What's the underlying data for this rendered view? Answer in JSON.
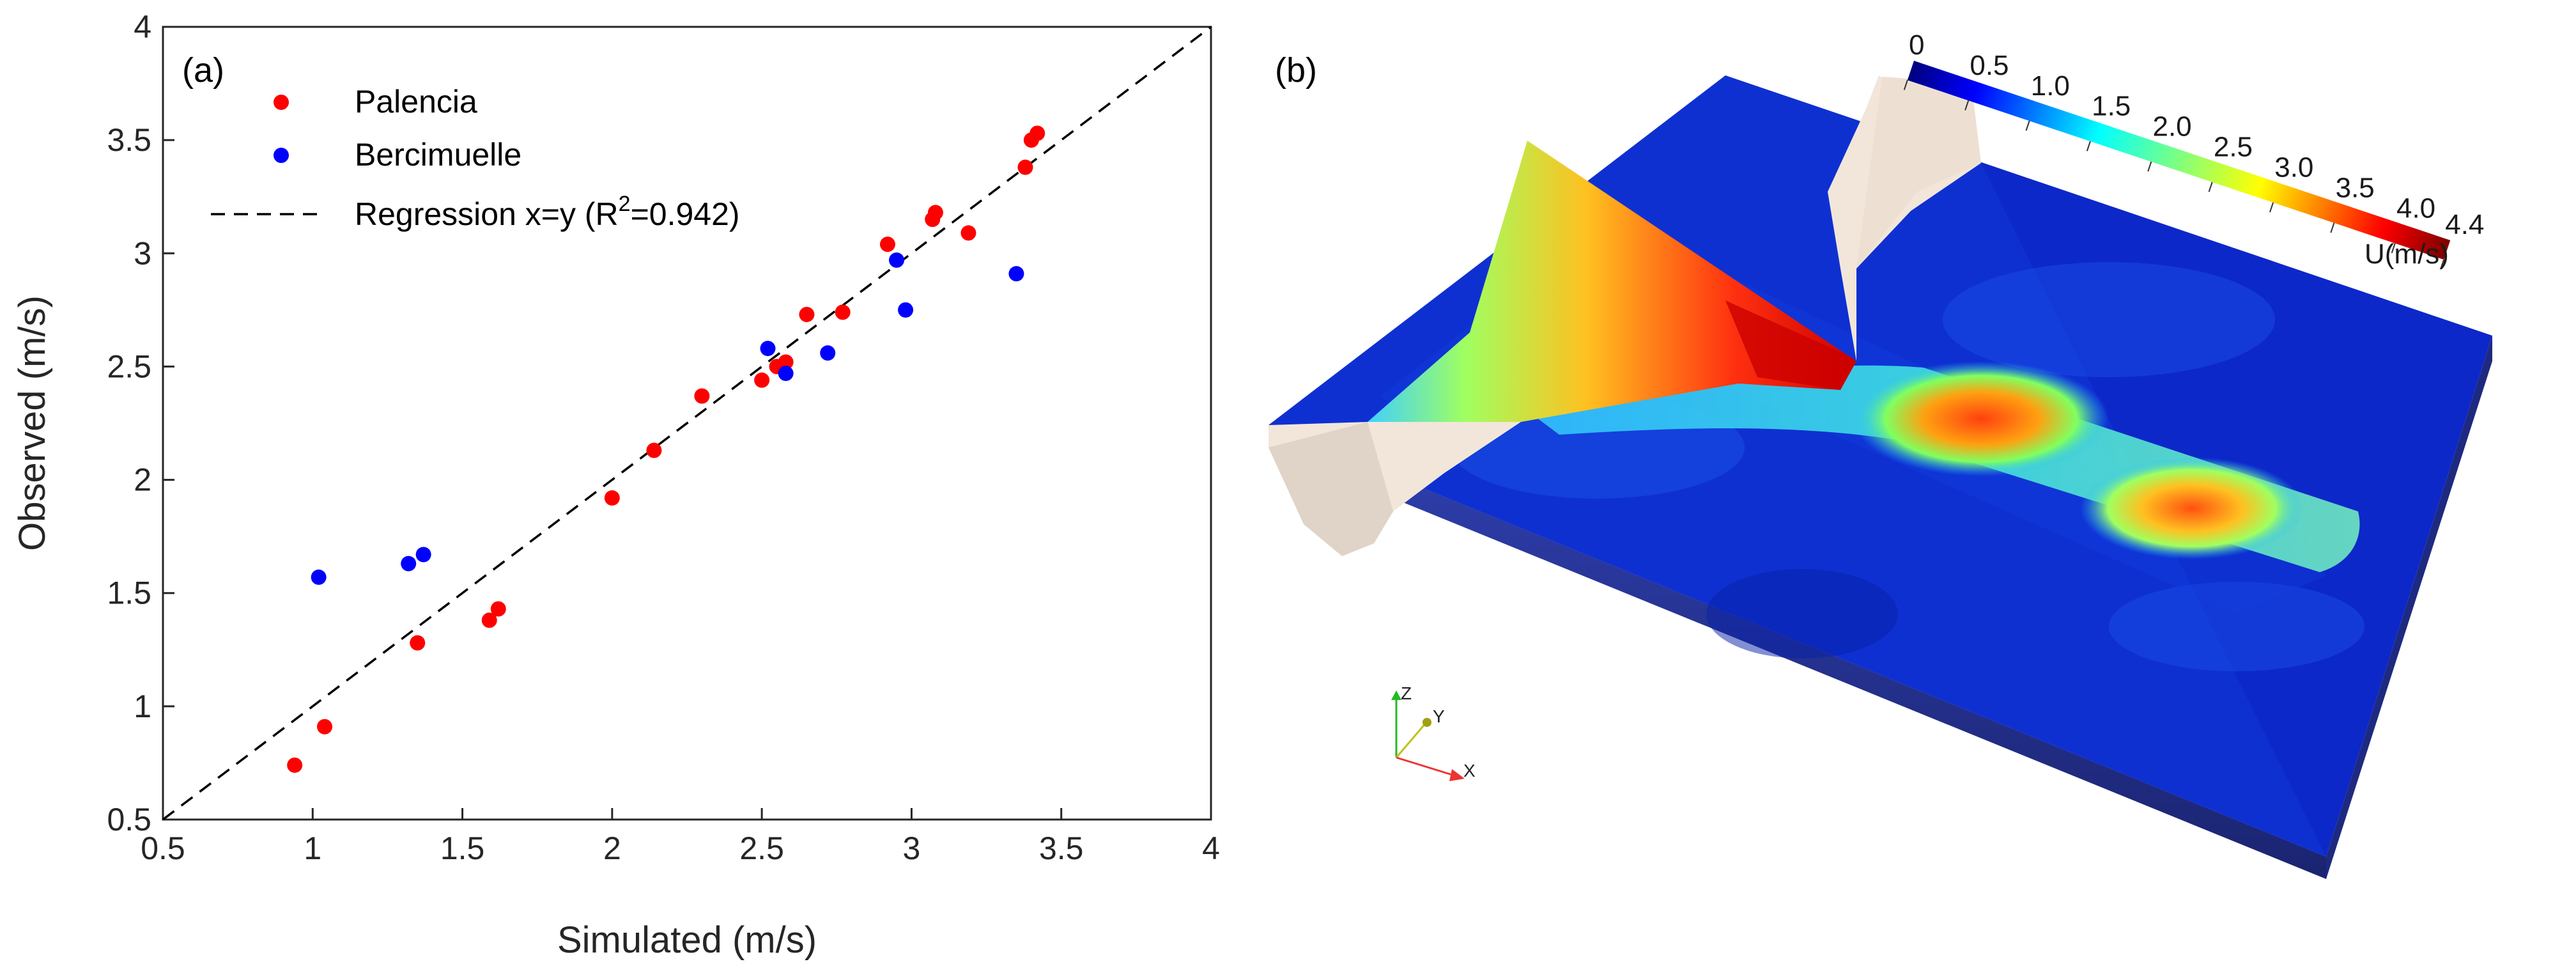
{
  "chart_data": [
    {
      "type": "scatter",
      "panel_label": "(a)",
      "xlabel": "Simulated (m/s)",
      "ylabel": "Observed (m/s)",
      "xlim": [
        0.5,
        4
      ],
      "ylim": [
        0.5,
        4
      ],
      "xticks": [
        "0.5",
        "1",
        "1.5",
        "2",
        "2.5",
        "3",
        "3.5",
        "4"
      ],
      "yticks": [
        "0.5",
        "1",
        "1.5",
        "2",
        "2.5",
        "3",
        "3.5",
        "4"
      ],
      "grid": false,
      "legend_position": "top-left",
      "series": [
        {
          "name": "Palencia",
          "color": "#ff0000",
          "points": [
            [
              0.94,
              0.74
            ],
            [
              1.04,
              0.91
            ],
            [
              1.35,
              1.28
            ],
            [
              1.59,
              1.38
            ],
            [
              1.62,
              1.43
            ],
            [
              2.0,
              1.92
            ],
            [
              2.14,
              2.13
            ],
            [
              2.3,
              2.37
            ],
            [
              2.5,
              2.44
            ],
            [
              2.55,
              2.5
            ],
            [
              2.58,
              2.52
            ],
            [
              2.65,
              2.73
            ],
            [
              2.77,
              2.74
            ],
            [
              2.92,
              3.04
            ],
            [
              3.07,
              3.15
            ],
            [
              3.08,
              3.18
            ],
            [
              3.19,
              3.09
            ],
            [
              3.38,
              3.38
            ],
            [
              3.4,
              3.5
            ],
            [
              3.42,
              3.53
            ]
          ]
        },
        {
          "name": "Bercimuelle",
          "color": "#0000ff",
          "points": [
            [
              1.02,
              1.57
            ],
            [
              1.32,
              1.63
            ],
            [
              1.37,
              1.67
            ],
            [
              2.52,
              2.58
            ],
            [
              2.58,
              2.47
            ],
            [
              2.72,
              2.56
            ],
            [
              2.95,
              2.97
            ],
            [
              2.98,
              2.75
            ],
            [
              3.35,
              2.91
            ]
          ]
        }
      ],
      "regression": {
        "label_prefix": "Regression x=y (R",
        "label_sup": "2",
        "label_suffix": "=0.942)",
        "line": [
          [
            0.5,
            0.5
          ],
          [
            4,
            4
          ]
        ],
        "color": "#000000"
      }
    },
    {
      "type": "heatmap",
      "panel_label": "(b)",
      "colorbar": {
        "ticks": [
          "0",
          "0.5",
          "1.0",
          "1.5",
          "2.0",
          "2.5",
          "3.0",
          "3.5",
          "4.0",
          "4.4"
        ],
        "tick_values": [
          0,
          0.5,
          1.0,
          1.5,
          2.0,
          2.5,
          3.0,
          3.5,
          4.0,
          4.4
        ],
        "range": [
          0,
          4.4
        ],
        "label": "U(m/s)",
        "colormap": "jet"
      },
      "axes_triad": {
        "z": "Z",
        "y": "Y",
        "x": "X"
      }
    }
  ]
}
